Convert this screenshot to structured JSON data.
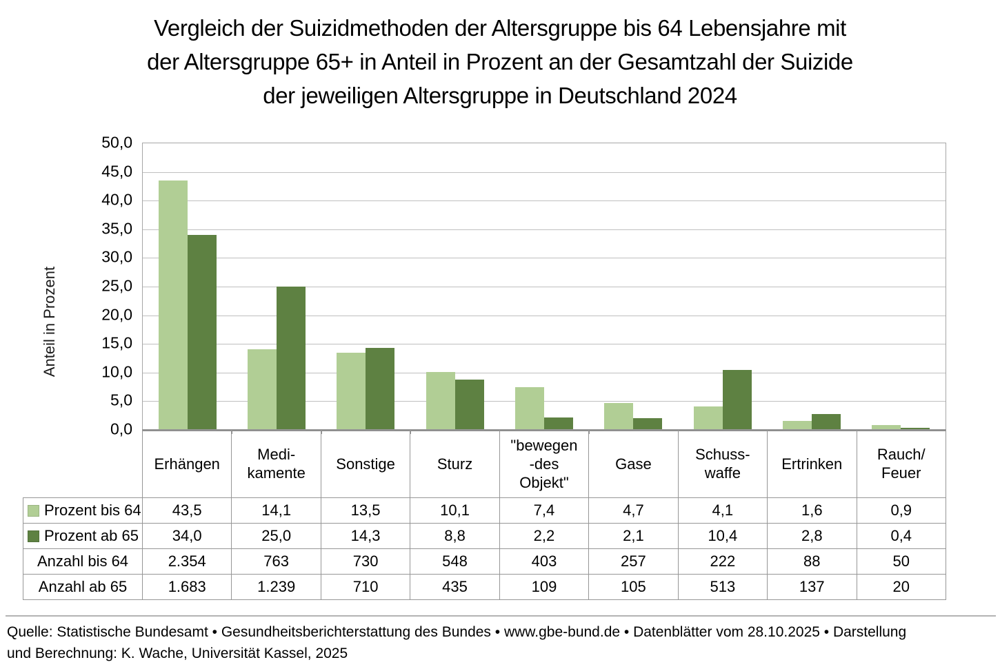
{
  "title_lines": [
    "Vergleich der Suizidmethoden der Altersgruppe bis 64 Lebensjahre mit",
    "der Altersgruppe 65+ in Anteil in Prozent an der Gesamtzahl der Suizide",
    "der jeweiligen Altersgruppe in Deutschland 2024"
  ],
  "y_axis": {
    "title": "Anteil in Prozent",
    "tick_labels": [
      "50,0",
      "45,0",
      "40,0",
      "35,0",
      "30,0",
      "25,0",
      "20,0",
      "15,0",
      "10,0",
      "5,0",
      "0,0"
    ]
  },
  "chart_data": {
    "type": "bar",
    "title": "Vergleich der Suizidmethoden der Altersgruppe bis 64 Lebensjahre mit der Altersgruppe 65+ in Anteil in Prozent an der Gesamtzahl der Suizide der jeweiligen Altersgruppe in Deutschland 2024",
    "xlabel": "",
    "ylabel": "Anteil in Prozent",
    "ylim": [
      0,
      50
    ],
    "ytick_step": 5,
    "grid": true,
    "legend_position": "table-left",
    "categories": [
      "Erhängen",
      "Medikamente",
      "Sonstige",
      "Sturz",
      "\"bewegen-des Objekt\"",
      "Gase",
      "Schusswaffe",
      "Ertrinken",
      "Rauch/Feuer"
    ],
    "series": [
      {
        "name": "Prozent bis 64",
        "plotted": true,
        "color": "#b1ce95",
        "values": [
          43.5,
          14.1,
          13.5,
          10.1,
          7.4,
          4.7,
          4.1,
          1.6,
          0.9
        ]
      },
      {
        "name": "Prozent ab 65",
        "plotted": true,
        "color": "#5e8142",
        "values": [
          34.0,
          25.0,
          14.3,
          8.8,
          2.2,
          2.1,
          10.4,
          2.8,
          0.4
        ]
      },
      {
        "name": "Anzahl bis 64",
        "plotted": false,
        "values": [
          2354,
          763,
          730,
          548,
          403,
          257,
          222,
          88,
          50
        ]
      },
      {
        "name": "Anzahl ab 65",
        "plotted": false,
        "values": [
          1683,
          1239,
          710,
          435,
          109,
          105,
          513,
          137,
          20
        ]
      }
    ]
  },
  "table": {
    "header_lines": [
      [
        "Erhängen"
      ],
      [
        "Medi-",
        "kamente"
      ],
      [
        "Sonstige"
      ],
      [
        "Sturz"
      ],
      [
        "\"bewegen",
        "-des",
        "Objekt\""
      ],
      [
        "Gase"
      ],
      [
        "Schuss-",
        "waffe"
      ],
      [
        "Ertrinken"
      ],
      [
        "Rauch/",
        "Feuer"
      ]
    ],
    "rows": [
      {
        "label": "Prozent bis 64",
        "swatch": "#b1ce95",
        "values": [
          "43,5",
          "14,1",
          "13,5",
          "10,1",
          "7,4",
          "4,7",
          "4,1",
          "1,6",
          "0,9"
        ]
      },
      {
        "label": "Prozent ab 65",
        "swatch": "#5e8142",
        "values": [
          "34,0",
          "25,0",
          "14,3",
          "8,8",
          "2,2",
          "2,1",
          "10,4",
          "2,8",
          "0,4"
        ]
      },
      {
        "label": "Anzahl bis 64",
        "swatch": null,
        "values": [
          "2.354",
          "763",
          "730",
          "548",
          "403",
          "257",
          "222",
          "88",
          "50"
        ]
      },
      {
        "label": "Anzahl ab 65",
        "swatch": null,
        "values": [
          "1.683",
          "1.239",
          "710",
          "435",
          "109",
          "105",
          "513",
          "137",
          "20"
        ]
      }
    ]
  },
  "source": {
    "lines": [
      "Quelle: Statistische Bundesamt • Gesundheitsberichterstattung des Bundes • www.gbe-bund.de • Datenblätter vom 28.10.2025 • Darstellung",
      "und Berechnung: K. Wache, Universität Kassel, 2025"
    ]
  },
  "colors": {
    "bar_light": "#b1ce95",
    "bar_dark": "#5e8142",
    "gridline": "#bfbfbf",
    "plot_border": "#a6a6a6",
    "table_border": "#969696"
  }
}
